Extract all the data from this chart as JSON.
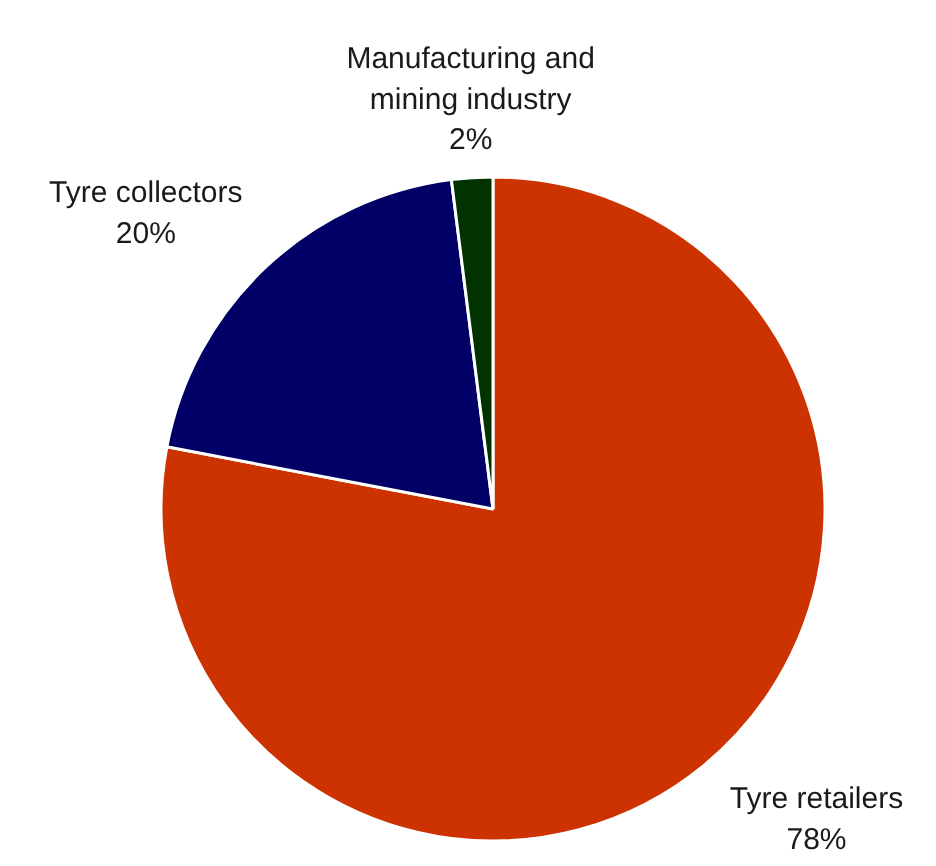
{
  "chart_data": {
    "type": "pie",
    "categories": [
      "Tyre retailers",
      "Tyre collectors",
      "Manufacturing and mining industry"
    ],
    "values": [
      78,
      20,
      2
    ],
    "colors": [
      "#cc3300",
      "#000066",
      "#003300"
    ],
    "value_labels": [
      "78%",
      "20%",
      "2%"
    ]
  }
}
